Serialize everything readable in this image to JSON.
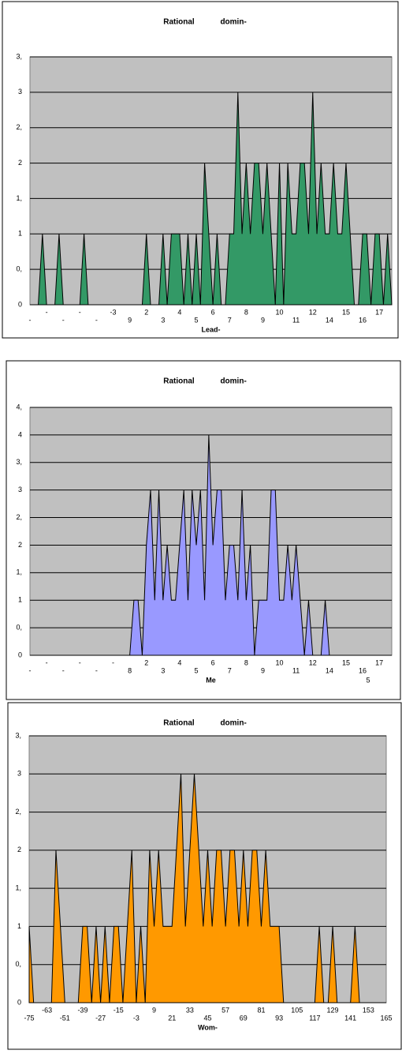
{
  "chart_data": [
    {
      "type": "area",
      "title": "Rational domin-",
      "x_label": "Lead-",
      "color": "#339966",
      "categories": [
        "-",
        null,
        null,
        null,
        "-",
        null,
        null,
        null,
        "-",
        null,
        null,
        null,
        "-",
        null,
        null,
        null,
        "-",
        null,
        null,
        null,
        "-3",
        null,
        null,
        null,
        "9",
        null,
        null,
        null,
        "2",
        null,
        null,
        null,
        "3",
        null,
        null,
        null,
        "4",
        null,
        null,
        null,
        "5",
        null,
        null,
        null,
        "6",
        null,
        null,
        null,
        "7",
        null,
        null,
        null,
        "8",
        null,
        null,
        null,
        "9",
        null,
        null,
        null,
        "10",
        null,
        null,
        null,
        "11",
        null,
        null,
        null,
        "12",
        null,
        null,
        null,
        "14",
        null,
        null,
        null,
        "15",
        null,
        null,
        null,
        "16",
        null,
        null,
        null,
        "17",
        null,
        null,
        null
      ],
      "values": [
        0,
        0,
        0,
        1,
        0,
        0,
        0,
        1,
        0,
        0,
        0,
        0,
        0,
        1,
        0,
        0,
        0,
        0,
        0,
        0,
        0,
        0,
        0,
        0,
        0,
        0,
        0,
        0,
        1,
        0,
        0,
        0,
        1,
        0,
        1,
        1,
        1,
        0,
        1,
        0,
        1,
        0,
        2,
        1,
        0,
        1,
        0,
        0,
        1,
        1,
        3,
        1,
        2,
        1,
        2,
        2,
        1,
        2,
        1,
        0,
        2,
        0,
        2,
        1,
        1,
        2,
        2,
        1,
        3,
        1,
        2,
        1,
        1,
        2,
        1,
        1,
        2,
        1,
        0,
        0,
        1,
        1,
        0,
        1,
        1,
        0,
        1,
        0
      ],
      "ylim": [
        0,
        3.5
      ],
      "yticks": [
        0,
        {
          "value": 0.5,
          "label": "0,"
        },
        1,
        {
          "value": 1.5,
          "label": "1,"
        },
        2,
        {
          "value": 2.5,
          "label": "2,"
        },
        3,
        {
          "value": 3.5,
          "label": "3,"
        }
      ],
      "grid": true
    },
    {
      "type": "area",
      "title": "Rational domin-",
      "x_label": "Me",
      "annotation": "5",
      "color": "#9999ff",
      "categories": [
        "-",
        null,
        null,
        null,
        "-",
        null,
        null,
        null,
        "-",
        null,
        null,
        null,
        "-",
        null,
        null,
        null,
        "-",
        null,
        null,
        null,
        "-",
        null,
        null,
        null,
        "8",
        null,
        null,
        null,
        "2",
        null,
        null,
        null,
        "3",
        null,
        null,
        null,
        "4",
        null,
        null,
        null,
        "5",
        null,
        null,
        null,
        "6",
        null,
        null,
        null,
        "7",
        null,
        null,
        null,
        "8",
        null,
        null,
        null,
        "9",
        null,
        null,
        null,
        "10",
        null,
        null,
        null,
        "11",
        null,
        null,
        null,
        "12",
        null,
        null,
        null,
        "14",
        null,
        null,
        null,
        "15",
        null,
        null,
        null,
        "16",
        null,
        null,
        null,
        "17",
        null,
        null,
        null
      ],
      "values": [
        0,
        0,
        0,
        0,
        0,
        0,
        0,
        0,
        0,
        0,
        0,
        0,
        0,
        0,
        0,
        0,
        0,
        0,
        0,
        0,
        0,
        0,
        0,
        0,
        0,
        1,
        1,
        0,
        2,
        3,
        1,
        3,
        1,
        2,
        1,
        1,
        2,
        3,
        1,
        3,
        2,
        3,
        1,
        4,
        2,
        3,
        3,
        1,
        2,
        2,
        1,
        3,
        1,
        2,
        0,
        1,
        1,
        1,
        3,
        3,
        1,
        1,
        2,
        1,
        2,
        1,
        0,
        1,
        0,
        0,
        0,
        1,
        0,
        0,
        0,
        0,
        0,
        0,
        0,
        0,
        0,
        0,
        0,
        0,
        0,
        0,
        0,
        0
      ],
      "ylim": [
        0,
        4.5
      ],
      "yticks": [
        0,
        {
          "value": 0.5,
          "label": "0,"
        },
        1,
        {
          "value": 1.5,
          "label": "1,"
        },
        2,
        {
          "value": 2.5,
          "label": "2,"
        },
        3,
        {
          "value": 3.5,
          "label": "3,"
        },
        4,
        {
          "value": 4.5,
          "label": "4,"
        }
      ],
      "grid": true
    },
    {
      "type": "area",
      "title": "Rational domin-",
      "x_label": "Wom-",
      "color": "#ff9900",
      "categories": [
        "-75",
        null,
        null,
        null,
        "-63",
        null,
        null,
        null,
        "-51",
        null,
        null,
        null,
        "-39",
        null,
        null,
        null,
        "-27",
        null,
        null,
        null,
        "-15",
        null,
        null,
        null,
        "-3",
        null,
        null,
        null,
        "9",
        null,
        null,
        null,
        "21",
        null,
        null,
        null,
        "33",
        null,
        null,
        null,
        "45",
        null,
        null,
        null,
        "57",
        null,
        null,
        null,
        "69",
        null,
        null,
        null,
        "81",
        null,
        null,
        null,
        "93",
        null,
        null,
        null,
        "105",
        null,
        null,
        null,
        "117",
        null,
        null,
        null,
        "129",
        null,
        null,
        null,
        "141",
        null,
        null,
        null,
        "153",
        null,
        null,
        null,
        "165"
      ],
      "values": [
        1,
        0,
        0,
        0,
        0,
        0,
        2,
        1,
        0,
        0,
        0,
        0,
        1,
        1,
        0,
        1,
        0,
        1,
        0,
        1,
        1,
        0,
        1,
        2,
        0,
        1,
        0,
        2,
        1,
        2,
        1,
        1,
        1,
        2,
        3,
        1,
        2,
        3,
        2,
        1,
        2,
        1,
        2,
        2,
        1,
        2,
        2,
        1,
        2,
        1,
        2,
        2,
        1,
        2,
        1,
        1,
        1,
        0,
        0,
        0,
        0,
        0,
        0,
        0,
        0,
        1,
        0,
        0,
        1,
        0,
        0,
        0,
        0,
        1,
        0,
        0,
        0,
        0,
        0,
        0,
        0
      ],
      "ylim": [
        0,
        3.5
      ],
      "yticks": [
        0,
        {
          "value": 0.5,
          "label": "0,"
        },
        1,
        {
          "value": 1.5,
          "label": "1,"
        },
        2,
        {
          "value": 2.5,
          "label": "2,"
        },
        3,
        {
          "value": 3.5,
          "label": "3,"
        }
      ],
      "grid": true
    }
  ]
}
